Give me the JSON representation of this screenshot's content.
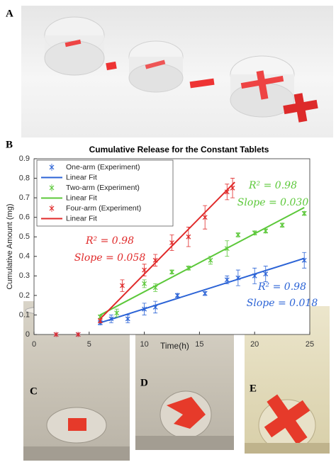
{
  "panel_labels": [
    "A",
    "B",
    "C",
    "D",
    "E"
  ],
  "chart_data": {
    "type": "errorbar_line",
    "title": "Cumulative Release for the Constant Tablets",
    "x_label": "Time(h)",
    "y_label": "Cumulative Amount (mg)",
    "xlim": [
      0,
      25
    ],
    "xticks": [
      0,
      5,
      10,
      15,
      20,
      25
    ],
    "ylim": [
      0,
      0.9
    ],
    "yticks": [
      0,
      0.1,
      0.2,
      0.3,
      0.4,
      0.5,
      0.6,
      0.7,
      0.8,
      0.9
    ],
    "legend": "upper left",
    "series": [
      {
        "name": "One-arm (Experiment)",
        "style": "errorbar",
        "color": "#2b63d6",
        "x": [
          2,
          4,
          6,
          7,
          8.5,
          10,
          11,
          13,
          15.5,
          17.5,
          18.5,
          20,
          21,
          24.5
        ],
        "values": [
          0,
          0,
          0.06,
          0.08,
          0.08,
          0.13,
          0.14,
          0.2,
          0.21,
          0.28,
          0.29,
          0.3,
          0.31,
          0.38
        ],
        "errors": [
          0,
          0,
          0.01,
          0.02,
          0.02,
          0.03,
          0.03,
          0.01,
          0.01,
          0.02,
          0.04,
          0.04,
          0.04,
          0.04
        ]
      },
      {
        "name": "Linear Fit",
        "style": "line",
        "color": "#2b63d6",
        "x": [
          6,
          24.5
        ],
        "values": [
          0.06,
          0.39
        ]
      },
      {
        "name": "Two-arm (Experiment)",
        "style": "errorbar",
        "color": "#5cc83a",
        "x": [
          6,
          7.5,
          10,
          11,
          12.5,
          14,
          16,
          17.5,
          18.5,
          20,
          21,
          22.5,
          24.5
        ],
        "values": [
          0.09,
          0.11,
          0.26,
          0.24,
          0.32,
          0.34,
          0.38,
          0.44,
          0.51,
          0.52,
          0.53,
          0.56,
          0.62
        ],
        "errors": [
          0.01,
          0.02,
          0.02,
          0.02,
          0.01,
          0.01,
          0.02,
          0.04,
          0.01,
          0.01,
          0.01,
          0.01,
          0.01
        ]
      },
      {
        "name": "Linear Fit",
        "style": "line",
        "color": "#5cc83a",
        "x": [
          6,
          24.5
        ],
        "values": [
          0.1,
          0.65
        ]
      },
      {
        "name": "Four-arm (Experiment)",
        "style": "errorbar",
        "color": "#e02a2a",
        "x": [
          2,
          4,
          6,
          8,
          10,
          11,
          12.5,
          14,
          15.5,
          17.5,
          18
        ],
        "values": [
          0,
          0,
          0.07,
          0.25,
          0.33,
          0.38,
          0.47,
          0.5,
          0.6,
          0.73,
          0.75
        ],
        "errors": [
          0,
          0,
          0.01,
          0.03,
          0.03,
          0.03,
          0.04,
          0.05,
          0.06,
          0.04,
          0.05
        ]
      },
      {
        "name": "Linear Fit",
        "style": "line",
        "color": "#e02a2a",
        "x": [
          6,
          18.2
        ],
        "values": [
          0.08,
          0.78
        ]
      }
    ],
    "annotations": [
      {
        "text": "R² = 0.98",
        "color": "#e02a2a"
      },
      {
        "text": "Slope = 0.058",
        "color": "#e02a2a"
      },
      {
        "text": "R² = 0.98",
        "color": "#5cc83a"
      },
      {
        "text": "Slope = 0.030",
        "color": "#5cc83a"
      },
      {
        "text": "R² = 0.98",
        "color": "#2b63d6"
      },
      {
        "text": "Slope = 0.018",
        "color": "#2b63d6"
      }
    ]
  }
}
